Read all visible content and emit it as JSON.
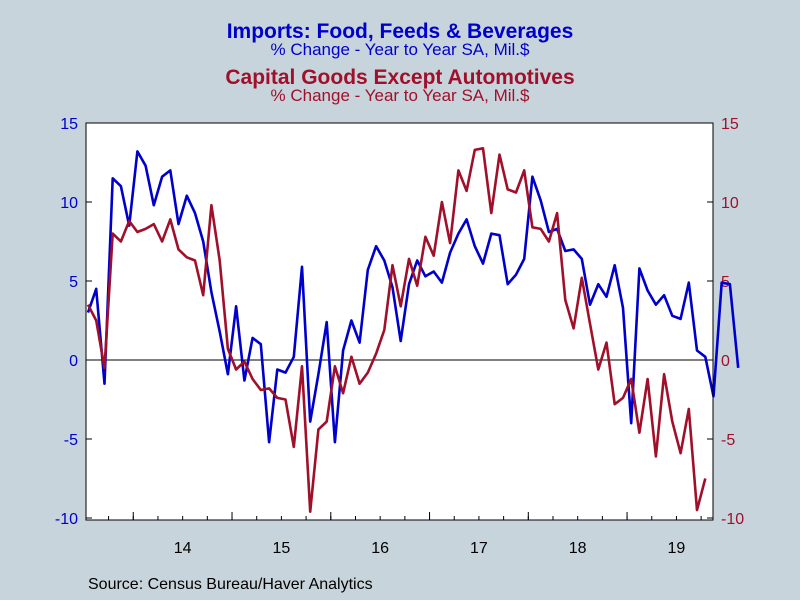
{
  "titles": {
    "series1_title": "Imports: Food, Feeds & Beverages",
    "series1_subtitle": "% Change - Year to Year    SA, Mil.$",
    "series2_title": "Capital Goods Except Automotives",
    "series2_subtitle": "% Change - Year to Year    SA, Mil.$"
  },
  "source": "Source:  Census Bureau/Haver Analytics",
  "colors": {
    "background": "#C8D4DC",
    "plot_background": "#FFFFFF",
    "series1": "#0000CC",
    "series2": "#A0102A",
    "axis": "#000000"
  },
  "chart_data": {
    "type": "line",
    "x_start": "2013-07",
    "frequency": "monthly",
    "x_tick_labels": [
      "14",
      "15",
      "16",
      "17",
      "18",
      "19"
    ],
    "ylim": [
      -10.5,
      15
    ],
    "y_ticks": [
      -10,
      -5,
      0,
      5,
      10,
      15
    ],
    "y_tick_labels_left": [
      "-10",
      "-5",
      "0",
      "5",
      "10",
      "15"
    ],
    "y_tick_labels_right": [
      "-10",
      "-5",
      "0",
      "5",
      "10",
      "15"
    ],
    "zero_line": true,
    "grid": false,
    "series": [
      {
        "name": "Imports: Food, Feeds & Beverages",
        "axis": "left",
        "values": [
          3.0,
          4.5,
          -1.5,
          11.5,
          11.0,
          8.5,
          13.2,
          12.3,
          9.8,
          11.6,
          12.0,
          8.6,
          10.4,
          9.3,
          7.5,
          4.3,
          1.8,
          -0.9,
          3.4,
          -1.3,
          1.4,
          1.0,
          -5.2,
          -0.6,
          -0.8,
          0.2,
          5.9,
          -3.9,
          -0.9,
          2.4,
          -5.2,
          0.6,
          2.5,
          1.1,
          5.7,
          7.2,
          6.3,
          4.6,
          1.2,
          4.8,
          6.3,
          5.3,
          5.6,
          4.9,
          6.8,
          8.0,
          8.9,
          7.2,
          6.1,
          8.0,
          7.9,
          4.8,
          5.4,
          6.4,
          11.6,
          10.1,
          8.1,
          8.3,
          6.9,
          7.0,
          6.4,
          3.5,
          4.8,
          4.0,
          6.0,
          3.3,
          -4.0,
          5.8,
          4.4,
          3.5,
          4.1,
          2.8,
          2.6,
          4.9,
          0.6,
          0.2,
          -2.3,
          4.9,
          4.8,
          -0.5
        ]
      },
      {
        "name": "Capital Goods Except Automotives",
        "axis": "right",
        "values": [
          3.5,
          2.5,
          -0.5,
          8.0,
          7.5,
          8.8,
          8.1,
          8.3,
          8.6,
          7.5,
          8.9,
          7.0,
          6.5,
          6.3,
          4.1,
          9.8,
          6.3,
          0.7,
          -0.6,
          -0.1,
          -1.2,
          -1.9,
          -1.8,
          -2.4,
          -2.5,
          -5.5,
          -0.4,
          -9.6,
          -4.4,
          -3.9,
          -0.4,
          -2.1,
          0.2,
          -1.5,
          -0.8,
          0.4,
          1.9,
          6.0,
          3.4,
          6.4,
          4.7,
          7.8,
          6.6,
          10.0,
          7.4,
          12.0,
          10.7,
          13.3,
          13.4,
          9.3,
          13.0,
          10.8,
          10.6,
          12.0,
          8.4,
          8.3,
          7.5,
          9.3,
          3.8,
          2.0,
          5.2,
          2.3,
          -0.6,
          1.1,
          -2.8,
          -2.4,
          -1.2,
          -4.6,
          -1.2,
          -6.1,
          -0.9,
          -3.9,
          -5.9,
          -3.1,
          -9.5,
          -7.5
        ]
      }
    ]
  }
}
